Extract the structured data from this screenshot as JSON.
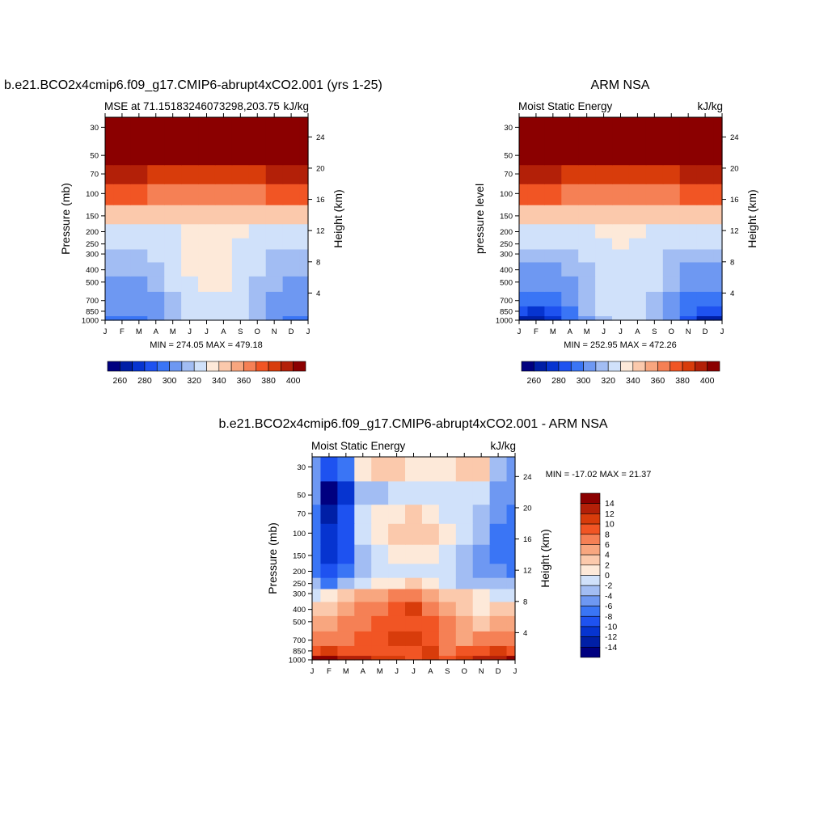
{
  "colors": {
    "cmap_abs": [
      "#000080",
      "#001fa6",
      "#0634d0",
      "#1e52f0",
      "#3a75f5",
      "#6e98f2",
      "#a2bdf3",
      "#d0e1fa",
      "#fde9d9",
      "#fbc9ac",
      "#f8a67f",
      "#f58055",
      "#f15524",
      "#d83c0b",
      "#b32008",
      "#8b0000"
    ],
    "cmap_diff": [
      "#000080",
      "#001fa6",
      "#0634d0",
      "#1e52f0",
      "#3a75f5",
      "#6e98f2",
      "#a2bdf3",
      "#d0e1fa",
      "#fde9d9",
      "#fbc9ac",
      "#f8a67f",
      "#f58055",
      "#f15524",
      "#d83c0b",
      "#b32008",
      "#8b0000"
    ]
  },
  "chart_data": [
    {
      "id": "model",
      "type": "heatmap",
      "title": "b.e21.BCO2x4cmip6.f09_g17.CMIP6-abrupt4xCO2.001 (yrs 1-25)",
      "left_string": "MSE at 71.15183246073298,203.75",
      "right_string": "kJ/kg",
      "xlabel": "",
      "ylabel": "Pressure (mb)",
      "y2label": "Height (km)",
      "x_ticks": [
        "J",
        "F",
        "M",
        "A",
        "M",
        "J",
        "J",
        "A",
        "S",
        "O",
        "N",
        "D",
        "J"
      ],
      "y_ticks": [
        "30",
        "50",
        "70",
        "100",
        "150",
        "200",
        "250",
        "300",
        "400",
        "500",
        "700",
        "850",
        "1000"
      ],
      "y2_ticks": [
        "24",
        "20",
        "16",
        "12",
        "8",
        "4"
      ],
      "stats_label": "MIN = 274.05 MAX = 479.18",
      "colorbar_labels": [
        "260",
        "280",
        "300",
        "320",
        "340",
        "360",
        "380",
        "400"
      ],
      "levels": [
        260,
        270,
        280,
        290,
        300,
        310,
        320,
        330,
        340,
        350,
        360,
        370,
        380,
        390,
        400
      ],
      "months": [
        "J",
        "F",
        "M",
        "A",
        "M",
        "J",
        "J",
        "A",
        "S",
        "O",
        "N",
        "D",
        "J"
      ],
      "pressure_levels": [
        1000,
        850,
        700,
        500,
        400,
        300,
        250,
        200,
        150,
        100,
        70,
        50,
        30
      ],
      "values": [
        [
          294,
          293,
          297,
          305,
          316,
          325,
          326,
          326,
          320,
          310,
          300,
          293,
          294
        ],
        [
          300,
          300,
          300,
          307,
          317,
          326,
          327,
          327,
          322,
          313,
          304,
          300,
          300
        ],
        [
          304,
          304,
          304,
          309,
          318,
          327,
          328,
          328,
          323,
          315,
          307,
          304,
          304
        ],
        [
          309,
          309,
          309,
          313,
          320,
          329,
          330,
          330,
          325,
          318,
          311,
          309,
          309
        ],
        [
          312,
          312,
          312,
          316,
          321,
          330,
          331,
          331,
          327,
          320,
          314,
          312,
          312
        ],
        [
          318,
          318,
          318,
          320,
          324,
          331,
          333,
          332,
          328,
          323,
          319,
          318,
          318
        ],
        [
          322,
          322,
          322,
          323,
          326,
          332,
          334,
          333,
          329,
          325,
          323,
          322,
          322
        ],
        [
          328,
          328,
          328,
          328,
          329,
          332,
          334,
          333,
          330,
          329,
          328,
          328,
          328
        ],
        [
          342,
          342,
          342,
          342,
          341,
          340,
          340,
          340,
          341,
          342,
          342,
          342,
          342
        ],
        [
          372,
          372,
          371,
          369,
          366,
          364,
          363,
          363,
          365,
          368,
          370,
          372,
          372
        ],
        [
          392,
          392,
          390,
          388,
          386,
          384,
          383,
          383,
          385,
          387,
          390,
          392,
          392
        ],
        [
          410,
          410,
          410,
          410,
          410,
          410,
          410,
          410,
          410,
          410,
          410,
          410,
          410
        ],
        [
          430,
          430,
          430,
          430,
          430,
          430,
          430,
          430,
          430,
          430,
          430,
          430,
          430
        ]
      ]
    },
    {
      "id": "obs",
      "type": "heatmap",
      "title": "ARM NSA",
      "left_string": "Moist Static Energy",
      "right_string": "kJ/kg",
      "ylabel": "pressure level",
      "y2label": "Height (km)",
      "x_ticks": [
        "J",
        "F",
        "M",
        "A",
        "M",
        "J",
        "J",
        "A",
        "S",
        "O",
        "N",
        "D",
        "J"
      ],
      "y_ticks": [
        "30",
        "50",
        "70",
        "100",
        "150",
        "200",
        "250",
        "300",
        "400",
        "500",
        "700",
        "850",
        "1000"
      ],
      "y2_ticks": [
        "24",
        "20",
        "16",
        "12",
        "8",
        "4"
      ],
      "stats_label": "MIN = 252.95 MAX = 472.26",
      "colorbar_labels": [
        "260",
        "280",
        "300",
        "320",
        "340",
        "360",
        "380",
        "400"
      ],
      "levels": [
        260,
        270,
        280,
        290,
        300,
        310,
        320,
        330,
        340,
        350,
        360,
        370,
        380,
        390,
        400
      ],
      "months": [
        "J",
        "F",
        "M",
        "A",
        "M",
        "J",
        "J",
        "A",
        "S",
        "O",
        "N",
        "D",
        "J"
      ],
      "pressure_levels": [
        1000,
        850,
        700,
        500,
        400,
        300,
        250,
        200,
        150,
        100,
        70,
        50,
        30
      ],
      "values": [
        [
          266,
          265,
          272,
          290,
          306,
          318,
          322,
          321,
          314,
          300,
          282,
          268,
          266
        ],
        [
          280,
          279,
          284,
          296,
          310,
          321,
          324,
          323,
          317,
          305,
          290,
          281,
          280
        ],
        [
          292,
          291,
          294,
          302,
          313,
          322,
          325,
          324,
          318,
          308,
          296,
          292,
          292
        ],
        [
          302,
          302,
          304,
          308,
          316,
          324,
          327,
          326,
          320,
          312,
          304,
          302,
          302
        ],
        [
          308,
          308,
          309,
          312,
          318,
          326,
          328,
          327,
          322,
          315,
          309,
          308,
          308
        ],
        [
          314,
          314,
          314,
          316,
          320,
          327,
          329,
          328,
          324,
          318,
          315,
          314,
          314
        ],
        [
          320,
          320,
          320,
          321,
          323,
          328,
          330,
          329,
          325,
          322,
          320,
          320,
          320
        ],
        [
          327,
          327,
          327,
          328,
          328,
          331,
          332,
          331,
          329,
          328,
          327,
          327,
          327
        ],
        [
          342,
          342,
          342,
          342,
          341,
          340,
          340,
          340,
          341,
          342,
          342,
          342,
          342
        ],
        [
          372,
          372,
          371,
          369,
          366,
          364,
          363,
          363,
          365,
          368,
          370,
          372,
          372
        ],
        [
          392,
          392,
          390,
          388,
          386,
          384,
          383,
          383,
          385,
          387,
          390,
          392,
          392
        ],
        [
          410,
          410,
          410,
          410,
          410,
          410,
          410,
          410,
          410,
          410,
          410,
          410,
          410
        ],
        [
          430,
          430,
          430,
          430,
          430,
          430,
          430,
          430,
          430,
          430,
          430,
          430,
          430
        ]
      ]
    },
    {
      "id": "diff",
      "type": "heatmap",
      "title": "b.e21.BCO2x4cmip6.f09_g17.CMIP6-abrupt4xCO2.001 - ARM NSA",
      "left_string": "Moist Static Energy",
      "right_string": "kJ/kg",
      "ylabel": "Pressure (mb)",
      "y2label": "Height (km)",
      "x_ticks": [
        "J",
        "F",
        "M",
        "A",
        "M",
        "J",
        "J",
        "A",
        "S",
        "O",
        "N",
        "D",
        "J"
      ],
      "y_ticks": [
        "30",
        "50",
        "70",
        "100",
        "150",
        "200",
        "250",
        "300",
        "400",
        "500",
        "700",
        "850",
        "1000"
      ],
      "y2_ticks": [
        "24",
        "20",
        "16",
        "12",
        "8",
        "4"
      ],
      "stats_label": "MIN = -17.02 MAX =  21.37",
      "colorbar_labels": [
        "14",
        "12",
        "10",
        "8",
        "6",
        "4",
        "2",
        "0",
        "-2",
        "-4",
        "-6",
        "-8",
        "-10",
        "-12",
        "-14"
      ],
      "levels": [
        -14,
        -12,
        -10,
        -8,
        -6,
        -4,
        -2,
        0,
        2,
        4,
        6,
        8,
        10,
        12,
        14
      ],
      "months": [
        "J",
        "F",
        "M",
        "A",
        "M",
        "J",
        "J",
        "A",
        "S",
        "O",
        "N",
        "D",
        "J"
      ],
      "pressure_levels": [
        1000,
        850,
        700,
        500,
        400,
        300,
        250,
        200,
        150,
        100,
        70,
        50,
        30
      ],
      "values": [
        [
          14,
          15,
          13,
          12,
          11,
          10,
          9,
          11,
          9,
          10,
          12,
          13,
          14
        ],
        [
          9,
          10,
          8,
          8,
          9,
          9,
          8,
          10,
          7,
          8,
          9,
          10,
          9
        ],
        [
          6,
          7,
          6,
          8,
          9,
          10,
          11,
          9,
          6,
          5,
          6,
          7,
          6
        ],
        [
          5,
          5,
          6,
          7,
          8,
          9,
          9,
          8,
          6,
          4,
          3,
          5,
          5
        ],
        [
          2,
          3,
          4,
          6,
          7,
          8,
          10,
          7,
          5,
          3,
          1,
          2,
          2
        ],
        [
          -1,
          0,
          2,
          4,
          5,
          6,
          7,
          5,
          3,
          2,
          0,
          -1,
          -1
        ],
        [
          -4,
          -7,
          -4,
          -1,
          0,
          1,
          2,
          1,
          -1,
          -3,
          -3,
          -4,
          -4
        ],
        [
          -7,
          -10,
          -8,
          -3,
          -1,
          -1,
          -2,
          -2,
          -2,
          -4,
          -5,
          -6,
          -7
        ],
        [
          -8,
          -11,
          -9,
          -3,
          -1,
          0,
          1,
          0,
          -1,
          -3,
          -5,
          -7,
          -8
        ],
        [
          -8,
          -12,
          -10,
          -2,
          1,
          2,
          3,
          2,
          0,
          -2,
          -4,
          -7,
          -8
        ],
        [
          -7,
          -13,
          -10,
          -2,
          0,
          1,
          2,
          1,
          -1,
          -2,
          -3,
          -6,
          -7
        ],
        [
          -6,
          -15,
          -11,
          -3,
          -3,
          -2,
          -2,
          -1,
          -2,
          -1,
          -2,
          -6,
          -6
        ],
        [
          -5,
          -9,
          -7,
          1,
          2,
          3,
          1,
          1,
          0,
          2,
          3,
          -4,
          -5
        ]
      ]
    }
  ]
}
